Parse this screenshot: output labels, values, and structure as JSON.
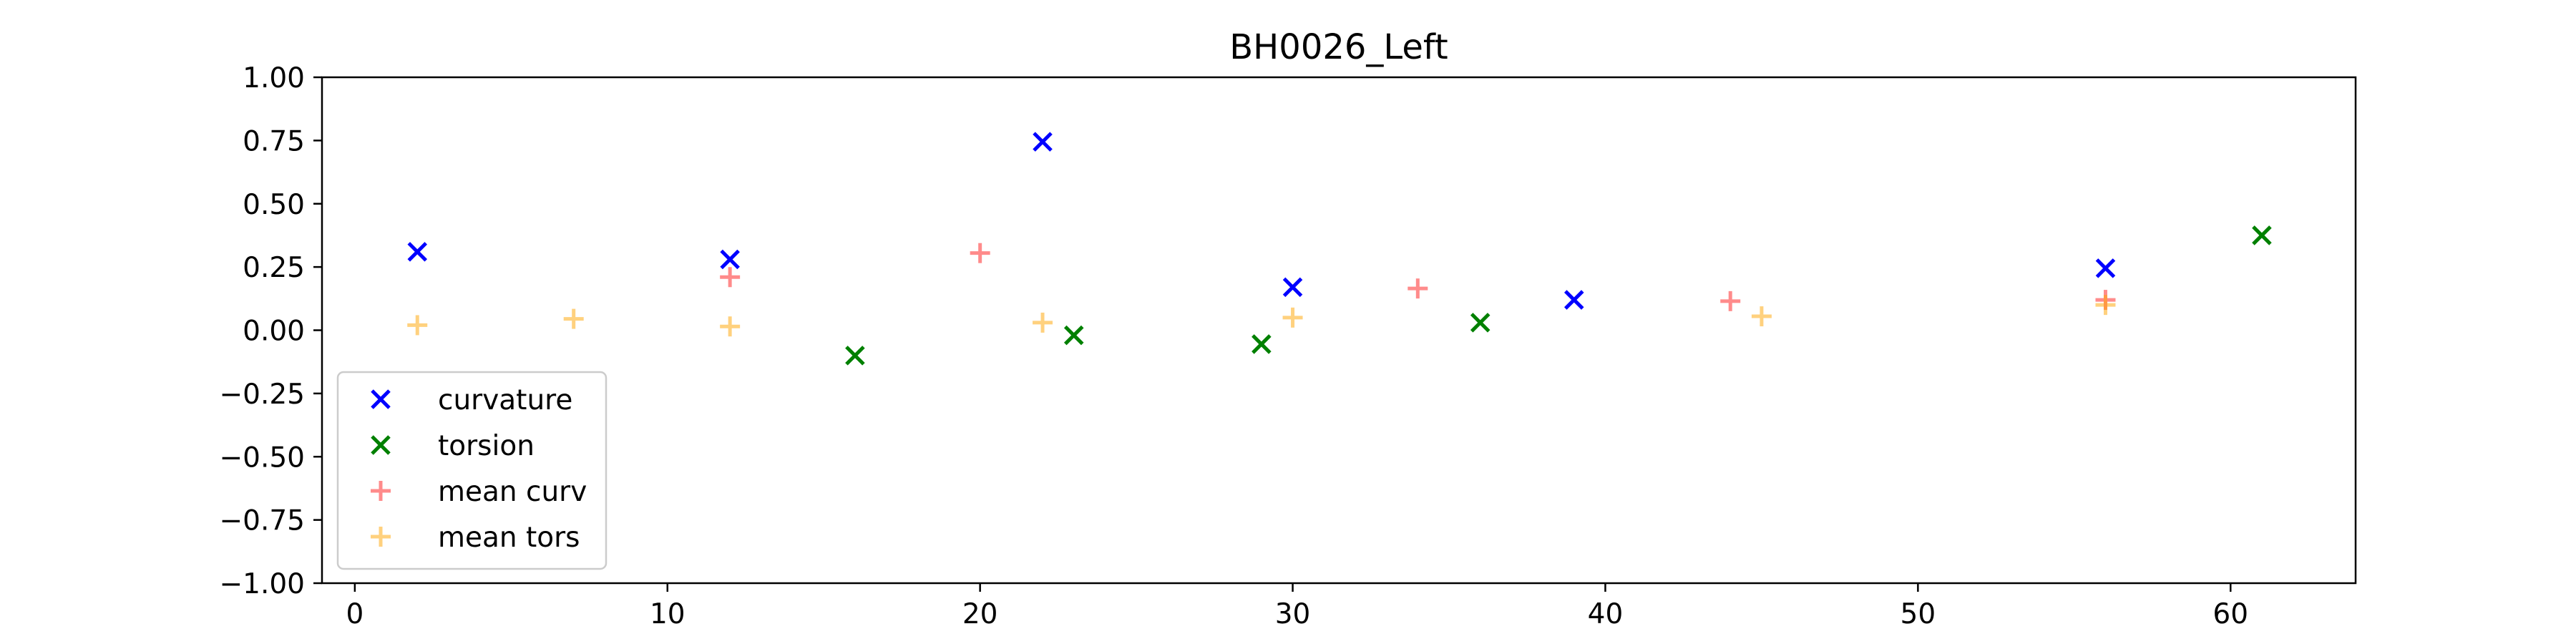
{
  "chart_data": {
    "type": "scatter",
    "title": "BH0026_Left",
    "xlabel": "",
    "ylabel": "",
    "xlim": [
      -1.05,
      64
    ],
    "ylim": [
      -1.0,
      1.0
    ],
    "xticks": [
      0,
      10,
      20,
      30,
      40,
      50,
      60
    ],
    "yticks": [
      -1.0,
      -0.75,
      -0.5,
      -0.25,
      0.0,
      0.25,
      0.5,
      0.75,
      1.0
    ],
    "xtick_labels": [
      "0",
      "10",
      "20",
      "30",
      "40",
      "50",
      "60"
    ],
    "ytick_labels": [
      "−1.00",
      "−0.75",
      "−0.50",
      "−0.25",
      "0.00",
      "0.25",
      "0.50",
      "0.75",
      "1.00"
    ],
    "grid": false,
    "legend_position": "lower-left",
    "series": [
      {
        "name": "curvature",
        "marker": "x",
        "color": "#0000ff",
        "opacity": 1.0,
        "points": [
          [
            2,
            0.31
          ],
          [
            12,
            0.28
          ],
          [
            22,
            0.745
          ],
          [
            30,
            0.17
          ],
          [
            39,
            0.12
          ],
          [
            56,
            0.245
          ]
        ]
      },
      {
        "name": "torsion",
        "marker": "x",
        "color": "#008000",
        "opacity": 1.0,
        "points": [
          [
            16,
            -0.1
          ],
          [
            23,
            -0.02
          ],
          [
            29,
            -0.055
          ],
          [
            36,
            0.03
          ],
          [
            61,
            0.375
          ]
        ]
      },
      {
        "name": "mean curv",
        "marker": "+",
        "color": "#ff0000",
        "opacity": 0.45,
        "points": [
          [
            12,
            0.21
          ],
          [
            20,
            0.305
          ],
          [
            34,
            0.165
          ],
          [
            44,
            0.115
          ],
          [
            56,
            0.12
          ]
        ]
      },
      {
        "name": "mean tors",
        "marker": "+",
        "color": "#ffa500",
        "opacity": 0.5,
        "points": [
          [
            2,
            0.02
          ],
          [
            7,
            0.045
          ],
          [
            12,
            0.015
          ],
          [
            22,
            0.03
          ],
          [
            30,
            0.05
          ],
          [
            45,
            0.055
          ],
          [
            56,
            0.1
          ]
        ]
      }
    ]
  }
}
